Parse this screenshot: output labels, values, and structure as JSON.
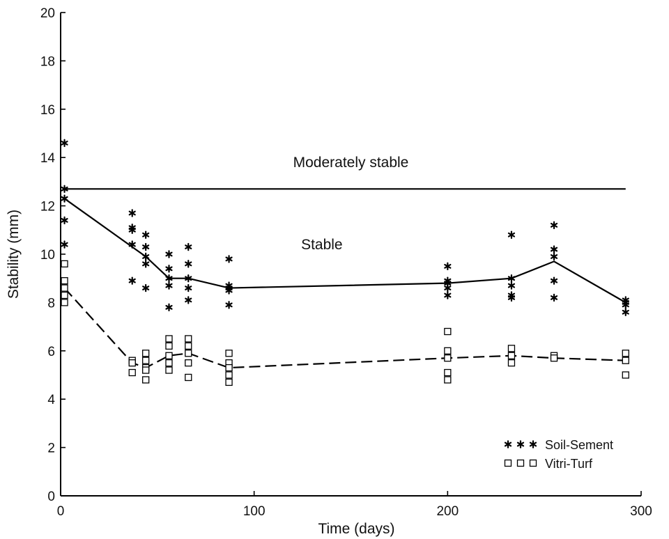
{
  "chart_data": {
    "type": "scatter",
    "title": "",
    "xlabel": "Time (days)",
    "ylabel": "Stability (mm)",
    "xlim": [
      0,
      300
    ],
    "ylim": [
      0,
      20
    ],
    "x_ticks": [
      "0",
      "100",
      "200",
      "300"
    ],
    "y_ticks": [
      "0",
      "2",
      "4",
      "6",
      "8",
      "10",
      "12",
      "14",
      "16",
      "18",
      "20"
    ],
    "grid": false,
    "legend_position": "bottom-right",
    "reference_line": {
      "y": 12.7,
      "style": "solid"
    },
    "annotations": {
      "upper_region": "Moderately stable",
      "lower_region": "Stable"
    },
    "series": [
      {
        "name": "Soil-Sement",
        "marker": "asterisk",
        "points": [
          [
            2,
            14.6
          ],
          [
            2,
            12.7
          ],
          [
            2,
            12.3
          ],
          [
            2,
            11.4
          ],
          [
            2,
            10.4
          ],
          [
            37,
            11.7
          ],
          [
            37,
            11.1
          ],
          [
            37,
            11.0
          ],
          [
            37,
            10.4
          ],
          [
            37,
            8.9
          ],
          [
            44,
            10.8
          ],
          [
            44,
            10.3
          ],
          [
            44,
            9.9
          ],
          [
            44,
            9.6
          ],
          [
            44,
            8.6
          ],
          [
            56,
            10.0
          ],
          [
            56,
            9.4
          ],
          [
            56,
            9.0
          ],
          [
            56,
            8.7
          ],
          [
            56,
            7.8
          ],
          [
            66,
            10.3
          ],
          [
            66,
            9.6
          ],
          [
            66,
            9.0
          ],
          [
            66,
            8.6
          ],
          [
            66,
            8.1
          ],
          [
            87,
            9.8
          ],
          [
            87,
            8.7
          ],
          [
            87,
            8.6
          ],
          [
            87,
            8.5
          ],
          [
            87,
            7.9
          ],
          [
            200,
            9.5
          ],
          [
            200,
            8.9
          ],
          [
            200,
            8.8
          ],
          [
            200,
            8.6
          ],
          [
            200,
            8.3
          ],
          [
            233,
            10.8
          ],
          [
            233,
            9.0
          ],
          [
            233,
            8.7
          ],
          [
            233,
            8.3
          ],
          [
            233,
            8.2
          ],
          [
            255,
            11.2
          ],
          [
            255,
            10.2
          ],
          [
            255,
            9.9
          ],
          [
            255,
            8.9
          ],
          [
            255,
            8.2
          ],
          [
            292,
            8.1
          ],
          [
            292,
            8.0
          ],
          [
            292,
            7.9
          ],
          [
            292,
            7.6
          ]
        ],
        "mean_line": {
          "style": "solid",
          "x": [
            2,
            37,
            44,
            56,
            66,
            87,
            200,
            233,
            255,
            292
          ],
          "y": [
            12.3,
            10.3,
            9.9,
            9.0,
            9.0,
            8.6,
            8.8,
            9.0,
            9.7,
            8.0
          ]
        }
      },
      {
        "name": "Vitri-Turf",
        "marker": "square",
        "points": [
          [
            2,
            9.6
          ],
          [
            2,
            8.9
          ],
          [
            2,
            8.6
          ],
          [
            2,
            8.3
          ],
          [
            2,
            8.0
          ],
          [
            37,
            5.6
          ],
          [
            37,
            5.5
          ],
          [
            37,
            5.1
          ],
          [
            44,
            5.9
          ],
          [
            44,
            5.6
          ],
          [
            44,
            5.3
          ],
          [
            44,
            5.2
          ],
          [
            44,
            4.8
          ],
          [
            56,
            6.5
          ],
          [
            56,
            6.2
          ],
          [
            56,
            5.8
          ],
          [
            56,
            5.5
          ],
          [
            56,
            5.2
          ],
          [
            66,
            6.5
          ],
          [
            66,
            6.2
          ],
          [
            66,
            5.9
          ],
          [
            66,
            5.5
          ],
          [
            66,
            4.9
          ],
          [
            87,
            5.9
          ],
          [
            87,
            5.5
          ],
          [
            87,
            5.3
          ],
          [
            87,
            5.0
          ],
          [
            87,
            4.7
          ],
          [
            200,
            6.8
          ],
          [
            200,
            6.0
          ],
          [
            200,
            5.7
          ],
          [
            200,
            5.1
          ],
          [
            200,
            4.8
          ],
          [
            233,
            6.1
          ],
          [
            233,
            5.8
          ],
          [
            233,
            5.5
          ],
          [
            255,
            5.8
          ],
          [
            255,
            5.7
          ],
          [
            292,
            5.9
          ],
          [
            292,
            5.6
          ],
          [
            292,
            5.0
          ]
        ],
        "mean_line": {
          "style": "dashed",
          "x": [
            2,
            37,
            44,
            56,
            66,
            87,
            200,
            233,
            255,
            292
          ],
          "y": [
            8.6,
            5.5,
            5.3,
            5.8,
            5.9,
            5.3,
            5.7,
            5.8,
            5.7,
            5.6
          ]
        }
      }
    ]
  }
}
